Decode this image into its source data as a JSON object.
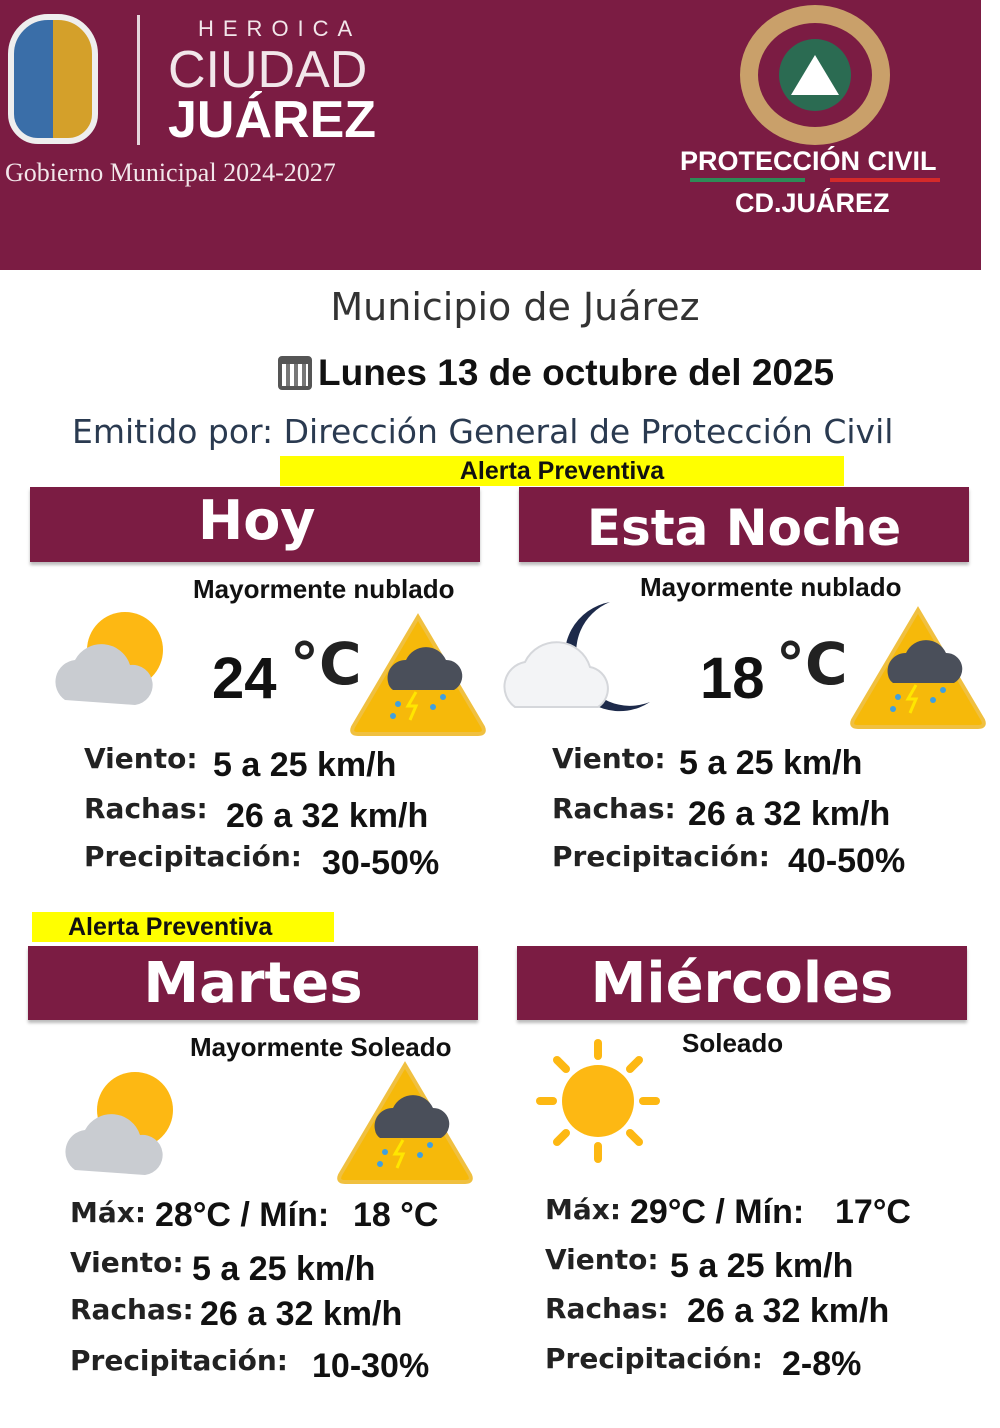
{
  "header": {
    "logo_left": {
      "line1": "HEROICA",
      "line2": "CIUDAD",
      "line3": "JUÁREZ",
      "line4": "Gobierno Municipal 2024-2027"
    },
    "logo_right": {
      "line1": "PROTECCIÓN CIVIL",
      "line2": "CD.JUÁREZ"
    },
    "color": "#7b1c43"
  },
  "title": "Municipio de Juárez",
  "date": "Lunes 13 de octubre del 2025",
  "issued_by": "Emitido por: Dirección General de Protección Civil",
  "alert_label": "Alerta Preventiva",
  "panels": [
    {
      "day": "Hoy",
      "condition": "Mayormente nublado",
      "temp": "24",
      "unit": "°C",
      "icon": "partly-cloudy-icon",
      "warning_icon": "storm-warning-icon",
      "rows": [
        {
          "label": "Viento:",
          "value": "5 a 25 km/h"
        },
        {
          "label": "Rachas:",
          "value": "26 a 32 km/h"
        },
        {
          "label": "Precipitación:",
          "value": "30-50%"
        }
      ]
    },
    {
      "day": "Esta Noche",
      "condition": "Mayormente nublado",
      "temp": "18",
      "unit": "°C",
      "icon": "cloudy-night-icon",
      "warning_icon": "storm-warning-icon",
      "rows": [
        {
          "label": "Viento:",
          "value": "5 a 25 km/h"
        },
        {
          "label": "Rachas:",
          "value": "26 a 32 km/h"
        },
        {
          "label": "Precipitación:",
          "value": "40-50%"
        }
      ]
    },
    {
      "day": "Martes",
      "condition": "Mayormente Soleado",
      "icon": "partly-cloudy-icon",
      "warning_icon": "storm-warning-icon",
      "rows": [
        {
          "label": "Máx:",
          "value": "28°C / Mín:",
          "value2": "18 °C"
        },
        {
          "label": "Viento:",
          "value": "5 a 25 km/h"
        },
        {
          "label": "Rachas:",
          "value": "26 a 32 km/h"
        },
        {
          "label": "Precipitación:",
          "value": "10-30%"
        }
      ]
    },
    {
      "day": "Miércoles",
      "condition": "Soleado",
      "icon": "sun-icon",
      "rows": [
        {
          "label": "Máx:",
          "value": "29°C / Mín:",
          "value2": "17°C"
        },
        {
          "label": "Viento:",
          "value": "5 a 25 km/h"
        },
        {
          "label": "Rachas:",
          "value": "26 a 32 km/h"
        },
        {
          "label": "Precipitación:",
          "value": "2-8%"
        }
      ]
    }
  ]
}
